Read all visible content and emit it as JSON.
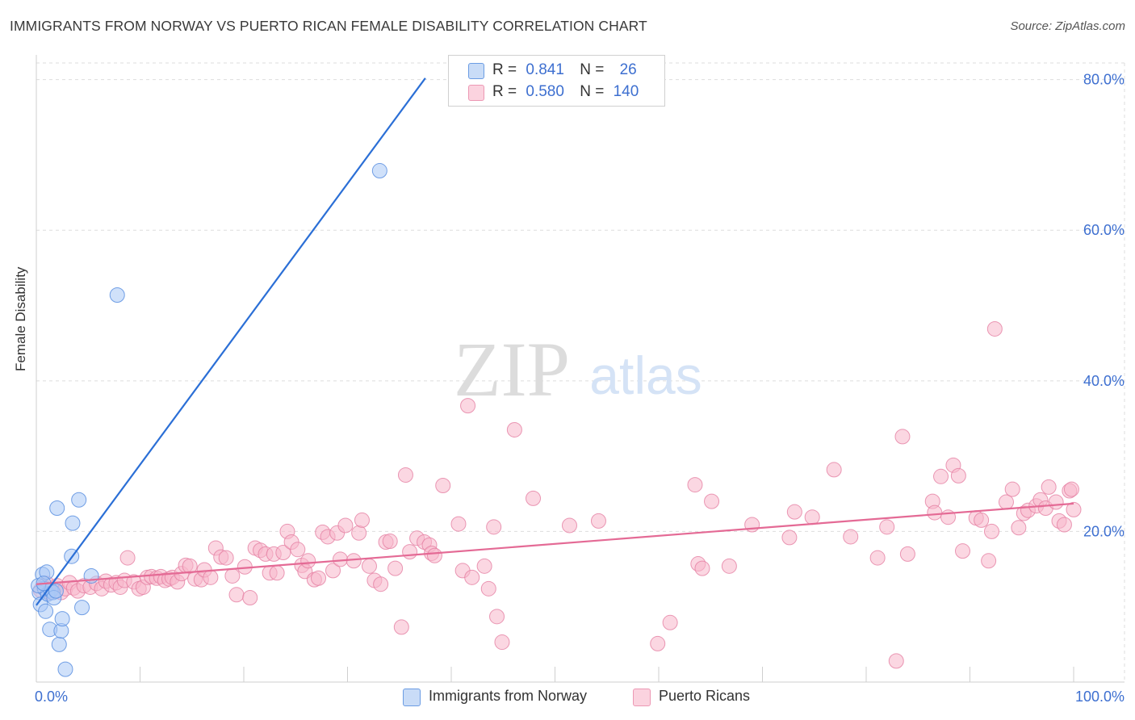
{
  "title": "IMMIGRANTS FROM NORWAY VS PUERTO RICAN FEMALE DISABILITY CORRELATION CHART",
  "source": "Source: ZipAtlas.com",
  "watermark": {
    "zip": "ZIP",
    "atlas": "atlas"
  },
  "legend_top": {
    "rows": [
      {
        "r_label": "R =",
        "r_value": "0.841",
        "n_label": "N =",
        "n_value": "26",
        "color": "#a9c9f5"
      },
      {
        "r_label": "R =",
        "r_value": "0.580",
        "n_label": "N =",
        "n_value": "140",
        "color": "#f7b7cb"
      }
    ]
  },
  "bottom_legend": {
    "norway": "Immigrants from Norway",
    "pr": "Puerto Ricans"
  },
  "colors": {
    "norway_fill": "#a9c9f5",
    "norway_stroke": "#5a8fe0",
    "norway_line": "#2b6fd6",
    "pr_fill": "#f7b7cb",
    "pr_stroke": "#e57fa3",
    "pr_line": "#e46a95",
    "tick_label": "#3d6fd0",
    "grid": "#dddddd"
  },
  "chart_data": {
    "type": "scatter",
    "title": "IMMIGRANTS FROM NORWAY VS PUERTO RICAN FEMALE DISABILITY CORRELATION CHART",
    "xlabel": "",
    "ylabel": "Female Disability",
    "xlim": [
      0,
      100
    ],
    "ylim": [
      0,
      82
    ],
    "x_tick_labels": [
      "0.0%",
      "100.0%"
    ],
    "y_ticks": [
      20,
      40,
      60,
      80
    ],
    "y_tick_labels": [
      "20.0%",
      "40.0%",
      "60.0%",
      "80.0%"
    ],
    "grid": true,
    "legend_position": "bottom",
    "series": [
      {
        "name": "Immigrants from Norway",
        "r": 0.841,
        "n": 26,
        "trend": {
          "x0": 0,
          "y0": 10.2,
          "x1": 37.5,
          "y1": 80.2
        },
        "points": [
          [
            0.3,
            11.9
          ],
          [
            0.4,
            10.3
          ],
          [
            0.6,
            14.3
          ],
          [
            0.8,
            12.4
          ],
          [
            0.9,
            9.4
          ],
          [
            1.0,
            14.6
          ],
          [
            1.1,
            11.7
          ],
          [
            1.3,
            7.0
          ],
          [
            1.4,
            12.2
          ],
          [
            1.6,
            11.9
          ],
          [
            1.7,
            11.2
          ],
          [
            1.9,
            12.1
          ],
          [
            2.0,
            23.1
          ],
          [
            2.2,
            5.0
          ],
          [
            2.4,
            6.8
          ],
          [
            2.5,
            8.4
          ],
          [
            2.8,
            1.7
          ],
          [
            3.4,
            16.7
          ],
          [
            3.5,
            21.1
          ],
          [
            4.1,
            24.2
          ],
          [
            4.4,
            9.9
          ],
          [
            5.3,
            14.1
          ],
          [
            7.8,
            51.4
          ],
          [
            33.1,
            67.9
          ],
          [
            0.2,
            12.8
          ],
          [
            0.7,
            13.1
          ]
        ]
      },
      {
        "name": "Puerto Ricans",
        "r": 0.58,
        "n": 140,
        "trend": {
          "x0": 0,
          "y0": 13.0,
          "x1": 100,
          "y1": 23.7
        },
        "points": [
          [
            0.4,
            12.2
          ],
          [
            0.7,
            12.7
          ],
          [
            1.0,
            13.1
          ],
          [
            1.3,
            11.9
          ],
          [
            1.6,
            12.3
          ],
          [
            2.0,
            12.8
          ],
          [
            2.4,
            11.9
          ],
          [
            2.8,
            12.4
          ],
          [
            3.2,
            13.2
          ],
          [
            3.6,
            12.5
          ],
          [
            4.0,
            12.1
          ],
          [
            4.6,
            12.8
          ],
          [
            5.2,
            12.6
          ],
          [
            5.8,
            13.1
          ],
          [
            6.3,
            12.4
          ],
          [
            6.7,
            13.4
          ],
          [
            7.2,
            12.9
          ],
          [
            7.7,
            13.2
          ],
          [
            8.1,
            12.6
          ],
          [
            8.5,
            13.5
          ],
          [
            8.8,
            16.5
          ],
          [
            9.4,
            13.3
          ],
          [
            9.9,
            12.4
          ],
          [
            10.3,
            12.6
          ],
          [
            10.7,
            13.9
          ],
          [
            11.1,
            14.0
          ],
          [
            11.6,
            13.8
          ],
          [
            12.0,
            14.0
          ],
          [
            12.4,
            13.5
          ],
          [
            12.8,
            13.7
          ],
          [
            13.1,
            13.9
          ],
          [
            13.6,
            13.3
          ],
          [
            14.0,
            14.4
          ],
          [
            14.4,
            15.5
          ],
          [
            14.8,
            15.4
          ],
          [
            15.3,
            13.7
          ],
          [
            15.9,
            13.6
          ],
          [
            16.2,
            14.9
          ],
          [
            16.8,
            13.9
          ],
          [
            17.3,
            17.8
          ],
          [
            17.8,
            16.6
          ],
          [
            18.3,
            16.5
          ],
          [
            18.9,
            14.1
          ],
          [
            19.3,
            11.6
          ],
          [
            20.1,
            15.3
          ],
          [
            20.6,
            11.2
          ],
          [
            21.1,
            17.8
          ],
          [
            21.6,
            17.5
          ],
          [
            22.1,
            17.0
          ],
          [
            22.5,
            14.5
          ],
          [
            22.9,
            17.0
          ],
          [
            23.2,
            14.5
          ],
          [
            23.8,
            17.2
          ],
          [
            24.2,
            20.0
          ],
          [
            24.6,
            18.6
          ],
          [
            25.2,
            17.6
          ],
          [
            25.6,
            15.5
          ],
          [
            25.9,
            14.7
          ],
          [
            26.2,
            16.1
          ],
          [
            26.8,
            13.6
          ],
          [
            27.2,
            13.8
          ],
          [
            27.6,
            19.9
          ],
          [
            28.1,
            19.3
          ],
          [
            28.6,
            14.8
          ],
          [
            29.0,
            19.8
          ],
          [
            29.3,
            16.3
          ],
          [
            29.8,
            20.8
          ],
          [
            30.6,
            16.1
          ],
          [
            31.1,
            19.8
          ],
          [
            31.4,
            21.5
          ],
          [
            32.1,
            15.4
          ],
          [
            32.6,
            13.5
          ],
          [
            33.2,
            13.0
          ],
          [
            33.7,
            18.6
          ],
          [
            34.1,
            18.7
          ],
          [
            34.6,
            15.1
          ],
          [
            35.2,
            7.3
          ],
          [
            35.6,
            27.5
          ],
          [
            36.0,
            17.3
          ],
          [
            36.7,
            19.1
          ],
          [
            37.4,
            18.6
          ],
          [
            37.9,
            18.2
          ],
          [
            38.1,
            17.1
          ],
          [
            38.4,
            16.8
          ],
          [
            39.2,
            26.1
          ],
          [
            40.7,
            21.0
          ],
          [
            41.1,
            14.8
          ],
          [
            41.6,
            36.7
          ],
          [
            42.0,
            13.9
          ],
          [
            43.2,
            15.4
          ],
          [
            43.6,
            12.4
          ],
          [
            44.1,
            20.6
          ],
          [
            44.4,
            8.7
          ],
          [
            44.9,
            5.3
          ],
          [
            46.1,
            33.5
          ],
          [
            47.9,
            24.4
          ],
          [
            51.4,
            20.8
          ],
          [
            54.2,
            21.4
          ],
          [
            59.9,
            5.1
          ],
          [
            61.1,
            7.9
          ],
          [
            63.5,
            26.2
          ],
          [
            63.8,
            15.7
          ],
          [
            64.2,
            15.1
          ],
          [
            65.1,
            24.0
          ],
          [
            66.8,
            15.4
          ],
          [
            69.0,
            20.9
          ],
          [
            72.6,
            19.2
          ],
          [
            73.1,
            22.6
          ],
          [
            74.8,
            21.9
          ],
          [
            76.9,
            28.2
          ],
          [
            78.5,
            19.3
          ],
          [
            81.1,
            16.5
          ],
          [
            82.0,
            20.6
          ],
          [
            82.9,
            2.8
          ],
          [
            83.5,
            32.6
          ],
          [
            84.0,
            17.0
          ],
          [
            86.4,
            24.0
          ],
          [
            86.6,
            22.5
          ],
          [
            87.2,
            27.3
          ],
          [
            87.9,
            21.9
          ],
          [
            88.4,
            28.8
          ],
          [
            88.9,
            27.4
          ],
          [
            89.3,
            17.4
          ],
          [
            90.6,
            21.8
          ],
          [
            91.1,
            21.5
          ],
          [
            91.8,
            16.1
          ],
          [
            92.1,
            20.0
          ],
          [
            92.4,
            46.9
          ],
          [
            93.5,
            23.9
          ],
          [
            94.1,
            25.6
          ],
          [
            94.7,
            20.5
          ],
          [
            95.2,
            22.4
          ],
          [
            95.6,
            22.8
          ],
          [
            96.4,
            23.4
          ],
          [
            96.8,
            24.2
          ],
          [
            97.3,
            23.1
          ],
          [
            97.6,
            25.9
          ],
          [
            98.3,
            23.9
          ],
          [
            98.6,
            21.4
          ],
          [
            99.1,
            20.9
          ],
          [
            99.6,
            25.4
          ],
          [
            100.0,
            22.9
          ],
          [
            99.8,
            25.6
          ]
        ]
      }
    ]
  }
}
